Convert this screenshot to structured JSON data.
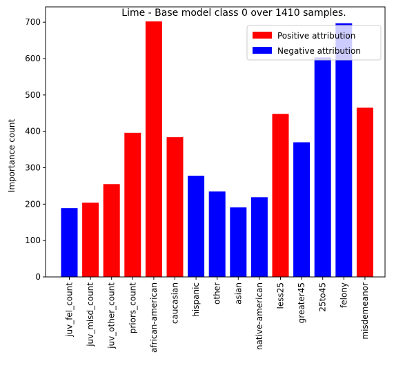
{
  "chart_data": {
    "type": "bar",
    "title": "Lime - Base model class 0 over 1410 samples.",
    "xlabel": "",
    "ylabel": "Importance count",
    "ylim": [
      0,
      742
    ],
    "yticks": [
      0,
      100,
      200,
      300,
      400,
      500,
      600,
      700
    ],
    "grid": false,
    "legend_position": "top-right",
    "categories": [
      "juv_fel_count",
      "juv_misd_count",
      "juv_other_count",
      "priors_count",
      "african-american",
      "caucasian",
      "hispanic",
      "other",
      "asian",
      "native-american",
      "less25",
      "greater45",
      "25to45",
      "felony",
      "misdemeanor"
    ],
    "values": [
      189,
      204,
      255,
      396,
      702,
      384,
      278,
      235,
      191,
      219,
      448,
      370,
      603,
      697,
      465
    ],
    "attribution": [
      "negative",
      "positive",
      "positive",
      "positive",
      "positive",
      "positive",
      "negative",
      "negative",
      "negative",
      "negative",
      "positive",
      "negative",
      "negative",
      "negative",
      "positive"
    ],
    "legend": [
      {
        "key": "positive",
        "label": "Positive attribution",
        "color": "#ff0000"
      },
      {
        "key": "negative",
        "label": "Negative attribution",
        "color": "#0000ff"
      }
    ]
  }
}
